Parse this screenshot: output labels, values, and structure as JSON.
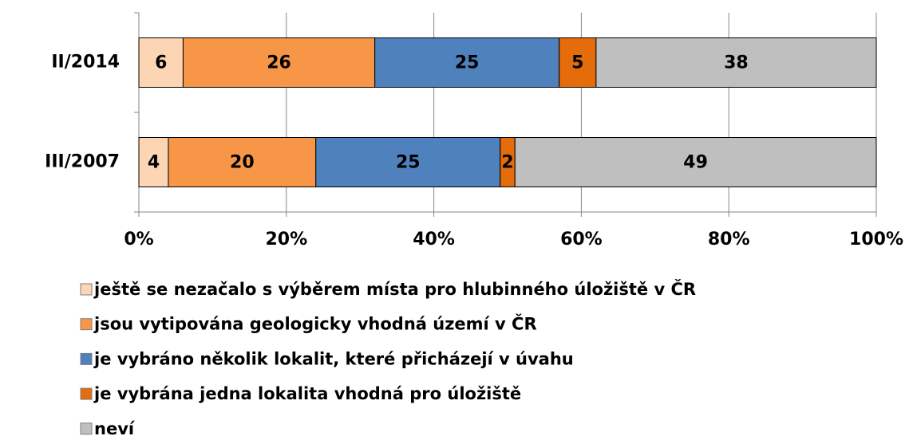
{
  "chart_data": {
    "type": "bar",
    "orientation": "horizontal",
    "stacked": true,
    "categories": [
      "II/2014",
      "III/2007"
    ],
    "series": [
      {
        "name": "ještě se nezačalo s výběrem místa pro hlubinného úložiště v ČR",
        "color": "#fcd5b5",
        "values": [
          6,
          4
        ]
      },
      {
        "name": "jsou vytipována geologicky vhodná území v ČR",
        "color": "#f79646",
        "values": [
          26,
          20
        ]
      },
      {
        "name": "je vybráno několik lokalit, které přicházejí v úvahu",
        "color": "#4f81bd",
        "values": [
          25,
          25
        ]
      },
      {
        "name": "je vybrána jedna lokalita vhodná pro úložiště",
        "color": "#e46c0a",
        "values": [
          5,
          2
        ]
      },
      {
        "name": "neví",
        "color": "#bfbfbf",
        "values": [
          38,
          49
        ]
      }
    ],
    "xlim": [
      0,
      100
    ],
    "xticks": [
      {
        "value": 0,
        "label": "0%"
      },
      {
        "value": 20,
        "label": "20%"
      },
      {
        "value": 40,
        "label": "40%"
      },
      {
        "value": 60,
        "label": "60%"
      },
      {
        "value": 80,
        "label": "80%"
      },
      {
        "value": 100,
        "label": "100%"
      }
    ],
    "grid": true,
    "legend": "bottom"
  }
}
